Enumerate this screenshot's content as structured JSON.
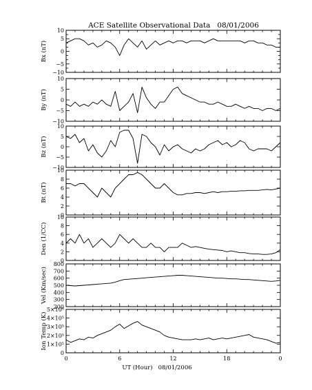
{
  "figure": {
    "title": "ACE Satellite Observational Data   08/01/2006",
    "xlabel": "UT (Hour)   08/01/2006"
  },
  "chart_data": {
    "type": "line",
    "title": "ACE Satellite Observational Data   08/01/2006",
    "xlabel": "UT (Hour)   08/01/2006",
    "x_ticks": [
      "0",
      "6",
      "12",
      "18",
      "0"
    ],
    "xlim": [
      0,
      24
    ],
    "grid": false,
    "panels": [
      {
        "ylabel": "Bx (nT)",
        "ylim": [
          -10,
          10
        ],
        "yticks": [
          -10,
          -8,
          -6,
          -4,
          -2,
          0,
          2,
          4,
          6,
          8,
          10
        ],
        "ytick_labels": [
          "−10",
          "",
          "−5",
          "",
          "",
          "0",
          "",
          "",
          "5",
          "",
          "10"
        ],
        "series": [
          {
            "x": [
              0,
              0.5,
              1,
              1.5,
              2,
              2.5,
              3,
              3.5,
              4,
              4.5,
              5,
              5.5,
              6,
              6.5,
              7,
              7.5,
              8,
              8.5,
              9,
              9.5,
              10,
              10.5,
              11,
              11.5,
              12,
              12.5,
              13,
              13.5,
              14,
              14.5,
              15,
              15.5,
              16,
              16.5,
              17,
              17.5,
              18,
              18.5,
              19,
              19.5,
              20,
              20.5,
              21,
              21.5,
              22,
              22.5,
              23,
              23.5,
              24
            ],
            "y": [
              4,
              5,
              6,
              6,
              5,
              3,
              4,
              2,
              3,
              5,
              4,
              2,
              -2,
              3,
              6,
              4,
              2,
              5,
              1,
              3,
              5,
              3,
              4,
              5,
              4,
              5,
              5,
              4,
              5,
              5,
              5,
              4,
              5,
              6,
              5,
              5,
              5,
              5,
              5,
              5,
              4,
              5,
              5,
              4,
              4,
              3,
              3,
              2,
              2
            ]
          }
        ]
      },
      {
        "ylabel": "By (nT)",
        "ylim": [
          -10,
          10
        ],
        "yticks": [
          -10,
          -5,
          0,
          5,
          10
        ],
        "ytick_labels": [
          "−10",
          "−5",
          "0",
          "5",
          "10"
        ],
        "series": [
          {
            "x": [
              0,
              0.5,
              1,
              1.5,
              2,
              2.5,
              3,
              3.5,
              4,
              4.5,
              5,
              5.5,
              6,
              6.5,
              7,
              7.5,
              8,
              8.5,
              9,
              9.5,
              10,
              10.5,
              11,
              11.5,
              12,
              12.5,
              13,
              13.5,
              14,
              14.5,
              15,
              15.5,
              16,
              16.5,
              17,
              17.5,
              18,
              18.5,
              19,
              19.5,
              20,
              20.5,
              21,
              21.5,
              22,
              22.5,
              23,
              23.5,
              24
            ],
            "y": [
              -2,
              -3,
              -1,
              -3,
              -2,
              -3,
              -1,
              -2,
              0,
              -2,
              -3,
              4,
              -5,
              -3,
              -1,
              3,
              -6,
              6,
              1,
              -2,
              -4,
              -1,
              -1,
              2,
              5,
              6,
              3,
              2,
              1,
              0,
              -1,
              -1,
              -2,
              -2,
              -1,
              -2,
              -3,
              -3,
              -2,
              -3,
              -4,
              -3,
              -4,
              -4,
              -5,
              -4,
              -4,
              -5,
              -4
            ]
          }
        ]
      },
      {
        "ylabel": "Bz (nT)",
        "ylim": [
          -10,
          10
        ],
        "yticks": [
          -10,
          -5,
          0,
          5,
          10
        ],
        "ytick_labels": [
          "−10",
          "−5",
          "0",
          "5",
          "10"
        ],
        "series": [
          {
            "x": [
              0,
              0.5,
              1,
              1.5,
              2,
              2.5,
              3,
              3.5,
              4,
              4.5,
              5,
              5.5,
              6,
              6.5,
              7,
              7.5,
              8,
              8.5,
              9,
              9.5,
              10,
              10.5,
              11,
              11.5,
              12,
              12.5,
              13,
              13.5,
              14,
              14.5,
              15,
              15.5,
              16,
              16.5,
              17,
              17.5,
              18,
              18.5,
              19,
              19.5,
              20,
              20.5,
              21,
              21.5,
              22,
              22.5,
              23,
              23.5,
              24
            ],
            "y": [
              5,
              4,
              6,
              2,
              4,
              -2,
              1,
              -3,
              -5,
              -2,
              3,
              0,
              7,
              8,
              8,
              4,
              -8,
              6,
              5,
              2,
              0,
              -4,
              1,
              -2,
              0,
              1,
              -1,
              -2,
              -3,
              -1,
              -2,
              -1,
              1,
              2,
              3,
              1,
              2,
              0,
              1,
              3,
              2,
              -1,
              -2,
              -1,
              -1,
              -1,
              -2,
              0,
              2
            ]
          }
        ]
      },
      {
        "ylabel": "Bt (nT)",
        "ylim": [
          0,
          10
        ],
        "yticks": [
          0,
          2,
          4,
          6,
          8,
          10
        ],
        "ytick_labels": [
          "0",
          "2",
          "4",
          "6",
          "8",
          "10"
        ],
        "series": [
          {
            "x": [
              0,
              0.5,
              1,
              1.5,
              2,
              2.5,
              3,
              3.5,
              4,
              4.5,
              5,
              5.5,
              6,
              6.5,
              7,
              7.5,
              8,
              8.5,
              9,
              9.5,
              10,
              10.5,
              11,
              11.5,
              12,
              12.5,
              13,
              13.5,
              14,
              14.5,
              15,
              15.5,
              16,
              16.5,
              17,
              17.5,
              18,
              18.5,
              19,
              19.5,
              20,
              20.5,
              21,
              21.5,
              22,
              22.5,
              23,
              23.5,
              24
            ],
            "y": [
              7,
              7,
              6.5,
              7,
              7,
              6,
              5,
              4,
              6,
              5,
              4,
              6,
              7,
              8,
              9,
              9,
              9.5,
              9,
              8,
              7,
              6,
              6,
              7,
              6,
              5,
              4.5,
              4.5,
              4.8,
              4.8,
              5,
              5,
              4.8,
              5,
              5.2,
              5,
              5.2,
              5.2,
              5.3,
              5.3,
              5.4,
              5.4,
              5.5,
              5.5,
              5.5,
              5.6,
              5.7,
              5.6,
              5.8,
              6
            ]
          }
        ]
      },
      {
        "ylabel": "Den (1/CC)",
        "ylim": [
          0,
          10
        ],
        "yticks": [
          0,
          2,
          4,
          6,
          8,
          10
        ],
        "ytick_labels": [
          "0",
          "2",
          "4",
          "6",
          "8",
          "10"
        ],
        "series": [
          {
            "x": [
              0,
              0.5,
              1,
              1.5,
              2,
              2.5,
              3,
              3.5,
              4,
              4.5,
              5,
              5.5,
              6,
              6.5,
              7,
              7.5,
              8,
              8.5,
              9,
              9.5,
              10,
              10.5,
              11,
              11.5,
              12,
              12.5,
              13,
              13.5,
              14,
              14.5,
              15,
              15.5,
              16,
              16.5,
              17,
              17.5,
              18,
              18.5,
              19,
              19.5,
              20,
              20.5,
              21,
              21.5,
              22,
              22.5,
              23,
              23.5,
              24
            ],
            "y": [
              4,
              5,
              4,
              6,
              4,
              5,
              3,
              4,
              5,
              4,
              3,
              4,
              6,
              5,
              4,
              5,
              4,
              3,
              3,
              4,
              3,
              3,
              2,
              3,
              3,
              3,
              4,
              3.5,
              3,
              3.2,
              3,
              2.8,
              2.6,
              2.5,
              2.4,
              2.3,
              2,
              2.2,
              2,
              1.8,
              1.8,
              1.6,
              1.5,
              1.5,
              1.4,
              1.4,
              1.5,
              1.8,
              2.5
            ]
          }
        ]
      },
      {
        "ylabel": "Vel (Km/sec)",
        "ylim": [
          200,
          800
        ],
        "yticks": [
          200,
          300,
          400,
          500,
          600,
          700,
          800
        ],
        "ytick_labels": [
          "200",
          "300",
          "400",
          "500",
          "600",
          "700",
          "800"
        ],
        "series": [
          {
            "x": [
              0,
              0.5,
              1,
              1.5,
              2,
              2.5,
              3,
              3.5,
              4,
              4.5,
              5,
              5.5,
              6,
              6.5,
              7,
              7.5,
              8,
              8.5,
              9,
              9.5,
              10,
              10.5,
              11,
              11.5,
              12,
              12.5,
              13,
              13.5,
              14,
              14.5,
              15,
              15.5,
              16,
              16.5,
              17,
              17.5,
              18,
              18.5,
              19,
              19.5,
              20,
              20.5,
              21,
              21.5,
              22,
              22.5,
              23,
              23.5,
              24
            ],
            "y": [
              500,
              495,
              490,
              495,
              500,
              505,
              510,
              515,
              520,
              525,
              530,
              545,
              565,
              580,
              585,
              590,
              595,
              600,
              605,
              610,
              615,
              620,
              625,
              630,
              635,
              640,
              640,
              635,
              630,
              625,
              620,
              615,
              610,
              605,
              600,
              600,
              595,
              590,
              590,
              585,
              580,
              580,
              575,
              570,
              565,
              560,
              555,
              560,
              570
            ]
          }
        ]
      },
      {
        "ylabel": "Ion Temp (K)",
        "ylim": [
          0,
          500000
        ],
        "yticks": [
          0,
          100000,
          200000,
          300000,
          400000,
          500000
        ],
        "ytick_labels": [
          "0",
          "1×10⁵",
          "2×10⁵",
          "3×10⁵",
          "4×10⁵",
          "5×10⁵"
        ],
        "series": [
          {
            "x": [
              0,
              0.5,
              1,
              1.5,
              2,
              2.5,
              3,
              3.5,
              4,
              4.5,
              5,
              5.5,
              6,
              6.5,
              7,
              7.5,
              8,
              8.5,
              9,
              9.5,
              10,
              10.5,
              11,
              11.5,
              12,
              12.5,
              13,
              13.5,
              14,
              14.5,
              15,
              15.5,
              16,
              16.5,
              17,
              17.5,
              18,
              18.5,
              19,
              19.5,
              20,
              20.5,
              21,
              21.5,
              22,
              22.5,
              23,
              23.5,
              24
            ],
            "y": [
              150000,
              120000,
              140000,
              160000,
              150000,
              180000,
              170000,
              200000,
              220000,
              240000,
              260000,
              300000,
              330000,
              280000,
              310000,
              340000,
              360000,
              320000,
              300000,
              280000,
              260000,
              240000,
              200000,
              180000,
              170000,
              160000,
              150000,
              150000,
              150000,
              160000,
              150000,
              160000,
              170000,
              150000,
              160000,
              170000,
              160000,
              170000,
              180000,
              190000,
              200000,
              210000,
              180000,
              170000,
              160000,
              150000,
              130000,
              110000,
              120000
            ]
          }
        ]
      }
    ]
  }
}
